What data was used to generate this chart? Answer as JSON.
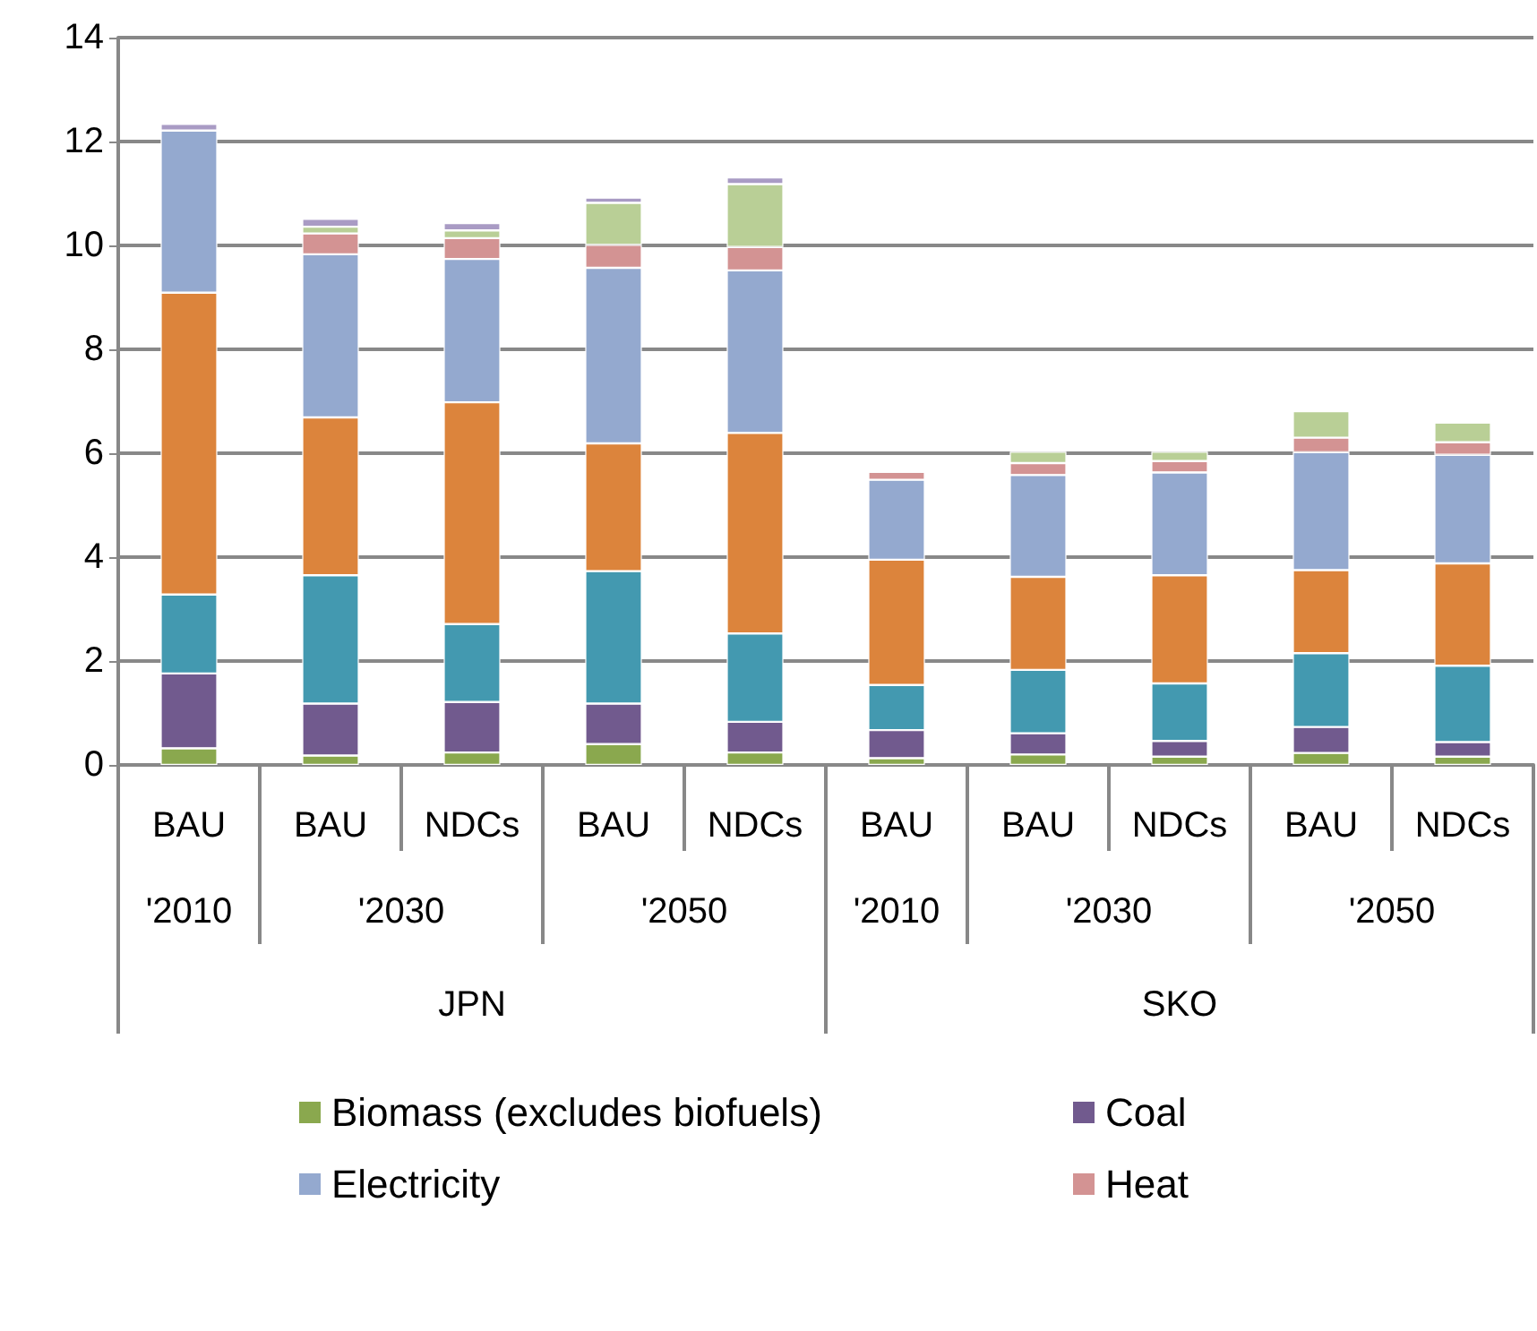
{
  "chart_data": {
    "type": "bar",
    "stacked": true,
    "categories": [
      "BAU",
      "BAU",
      "NDCs",
      "BAU",
      "NDCs",
      "BAU",
      "BAU",
      "NDCs",
      "BAU",
      "NDCs"
    ],
    "annotations": [
      "'2010",
      "'2030",
      "'2050",
      "'2010",
      "'2030",
      "'2050",
      "JPN",
      "SKO"
    ],
    "series": [
      {
        "name": "Biomass (excludes biofuels)",
        "color": "#8aa84e",
        "values": [
          0.32,
          0.18,
          0.24,
          0.4,
          0.24,
          0.13,
          0.2,
          0.16,
          0.23,
          0.16
        ]
      },
      {
        "name": "Coal",
        "color": "#715a8e",
        "values": [
          1.44,
          1.0,
          0.97,
          0.78,
          0.59,
          0.54,
          0.41,
          0.3,
          0.5,
          0.28
        ]
      },
      {
        "color": "#4399b0",
        "values": [
          1.52,
          2.47,
          1.5,
          2.55,
          1.7,
          0.87,
          1.22,
          1.11,
          1.42,
          1.47
        ]
      },
      {
        "color": "#dc843c",
        "values": [
          5.81,
          3.04,
          4.27,
          2.46,
          3.86,
          2.41,
          1.79,
          2.08,
          1.6,
          1.97
        ]
      },
      {
        "name": "Electricity",
        "color": "#94a9cf",
        "values": [
          3.12,
          3.14,
          2.76,
          3.38,
          3.13,
          1.54,
          1.96,
          1.98,
          2.27,
          2.09
        ]
      },
      {
        "name": "Heat",
        "color": "#d39393",
        "values": [
          0,
          0.4,
          0.4,
          0.44,
          0.45,
          0.15,
          0.23,
          0.22,
          0.28,
          0.24
        ]
      },
      {
        "color": "#b9cf96",
        "values": [
          0,
          0.13,
          0.15,
          0.81,
          1.21,
          0,
          0.22,
          0.18,
          0.51,
          0.38
        ]
      },
      {
        "color": "#a99bc4",
        "values": [
          0.13,
          0.15,
          0.14,
          0.1,
          0.13,
          0,
          0,
          0,
          0,
          0
        ]
      }
    ],
    "ylim": [
      0,
      14
    ],
    "yticks": [
      0,
      2,
      4,
      6,
      8,
      10,
      12,
      14
    ],
    "grid": "y",
    "legend": "bottom"
  }
}
